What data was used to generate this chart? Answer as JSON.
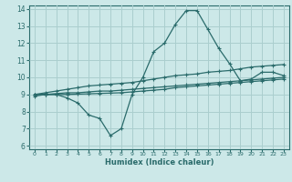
{
  "xlabel": "Humidex (Indice chaleur)",
  "bg_color": "#cce8e8",
  "grid_color": "#aacece",
  "line_color": "#2a6b6b",
  "xlim": [
    -0.5,
    23.5
  ],
  "ylim": [
    5.8,
    14.2
  ],
  "yticks": [
    6,
    7,
    8,
    9,
    10,
    11,
    12,
    13,
    14
  ],
  "xticks": [
    0,
    1,
    2,
    3,
    4,
    5,
    6,
    7,
    8,
    9,
    10,
    11,
    12,
    13,
    14,
    15,
    16,
    17,
    18,
    19,
    20,
    21,
    22,
    23
  ],
  "line1_x": [
    0,
    1,
    2,
    3,
    4,
    5,
    6,
    7,
    8,
    9,
    10,
    11,
    12,
    13,
    14,
    15,
    16,
    17,
    18,
    19,
    20,
    21,
    22,
    23
  ],
  "line1_y": [
    8.9,
    9.0,
    9.0,
    8.8,
    8.5,
    7.8,
    7.6,
    6.6,
    7.0,
    9.0,
    10.0,
    11.5,
    12.0,
    13.1,
    13.9,
    13.9,
    12.8,
    11.7,
    10.8,
    9.8,
    9.9,
    10.3,
    10.3,
    10.1
  ],
  "line2_x": [
    0,
    1,
    2,
    3,
    4,
    5,
    6,
    7,
    8,
    9,
    10,
    11,
    12,
    13,
    14,
    15,
    16,
    17,
    18,
    19,
    20,
    21,
    22,
    23
  ],
  "line2_y": [
    9.0,
    9.1,
    9.2,
    9.3,
    9.4,
    9.5,
    9.55,
    9.6,
    9.65,
    9.7,
    9.8,
    9.9,
    10.0,
    10.1,
    10.15,
    10.2,
    10.3,
    10.35,
    10.4,
    10.5,
    10.6,
    10.65,
    10.7,
    10.75
  ],
  "line3_x": [
    0,
    1,
    2,
    3,
    4,
    5,
    6,
    7,
    8,
    9,
    10,
    11,
    12,
    13,
    14,
    15,
    16,
    17,
    18,
    19,
    20,
    21,
    22,
    23
  ],
  "line3_y": [
    9.0,
    9.0,
    9.05,
    9.1,
    9.1,
    9.15,
    9.2,
    9.2,
    9.25,
    9.3,
    9.35,
    9.4,
    9.45,
    9.5,
    9.55,
    9.6,
    9.65,
    9.7,
    9.75,
    9.8,
    9.85,
    9.9,
    9.95,
    10.0
  ],
  "line4_x": [
    0,
    1,
    2,
    3,
    4,
    5,
    6,
    7,
    8,
    9,
    10,
    11,
    12,
    13,
    14,
    15,
    16,
    17,
    18,
    19,
    20,
    21,
    22,
    23
  ],
  "line4_y": [
    9.0,
    9.0,
    9.0,
    9.0,
    9.02,
    9.04,
    9.06,
    9.08,
    9.1,
    9.15,
    9.2,
    9.25,
    9.3,
    9.4,
    9.45,
    9.5,
    9.55,
    9.6,
    9.65,
    9.7,
    9.75,
    9.8,
    9.85,
    9.9
  ]
}
